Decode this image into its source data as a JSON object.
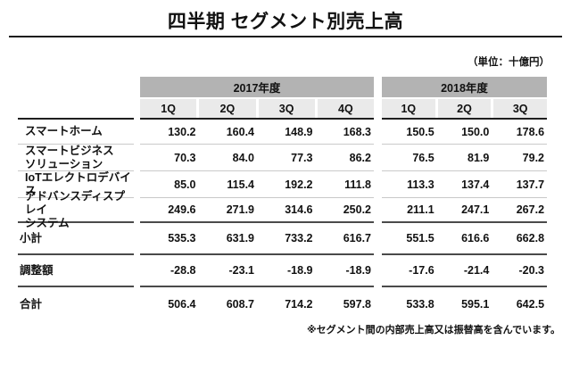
{
  "slide": {
    "title": "四半期 セグメント別売上高",
    "unit_note": "（単位：十億円）",
    "footnote": "※セグメント間の内部売上高又は振替高を含んでいます。"
  },
  "table": {
    "year_groups": [
      {
        "label": "2017年度",
        "quarters": [
          "1Q",
          "2Q",
          "3Q",
          "4Q"
        ]
      },
      {
        "label": "2018年度",
        "quarters": [
          "1Q",
          "2Q",
          "3Q"
        ]
      }
    ],
    "rows": [
      {
        "label_lines": [
          "スマートホーム"
        ],
        "values": [
          "130.2",
          "160.4",
          "148.9",
          "168.3",
          "150.5",
          "150.0",
          "178.6"
        ]
      },
      {
        "label_lines": [
          "スマートビジネス",
          "ソリューション"
        ],
        "values": [
          "70.3",
          "84.0",
          "77.3",
          "86.2",
          "76.5",
          "81.9",
          "79.2"
        ]
      },
      {
        "label_lines": [
          "IoTエレクトロデバイス"
        ],
        "values": [
          "85.0",
          "115.4",
          "192.2",
          "111.8",
          "113.3",
          "137.4",
          "137.7"
        ]
      },
      {
        "label_lines": [
          "アドバンスディスプレイ",
          "システム"
        ],
        "values": [
          "249.6",
          "271.9",
          "314.6",
          "250.2",
          "211.1",
          "247.1",
          "267.2"
        ]
      },
      {
        "label_lines": [
          "小計"
        ],
        "values": [
          "535.3",
          "631.9",
          "733.2",
          "616.7",
          "551.5",
          "616.6",
          "662.8"
        ]
      },
      {
        "label_lines": [
          "調整額"
        ],
        "values": [
          "-28.8",
          "-23.1",
          "-18.9",
          "-18.9",
          "-17.6",
          "-21.4",
          "-20.3"
        ]
      },
      {
        "label_lines": [
          "合計"
        ],
        "values": [
          "506.4",
          "608.7",
          "714.2",
          "597.8",
          "533.8",
          "595.1",
          "642.5"
        ]
      }
    ]
  },
  "colors": {
    "year_header_bg": "#b3b3b3",
    "quarter_header_bg": "#eaeaea",
    "light_separator": "#c9c9c9",
    "dark_separator": "#4a4a4a",
    "header_underline": "#1f1f1f",
    "text": "#111111"
  }
}
